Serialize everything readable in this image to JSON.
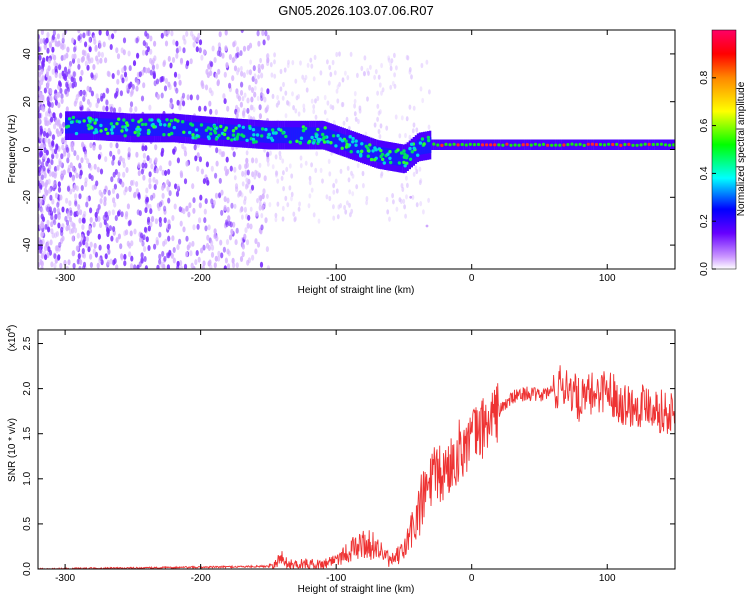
{
  "title": "GN05.2026.103.07.06.R07",
  "chart_data": [
    {
      "type": "heatmap",
      "xlabel": "Height of straight line (km)",
      "ylabel": "Frequency (Hz)",
      "xlim": [
        -320,
        150
      ],
      "ylim": [
        -50,
        50
      ],
      "xticks": [
        -300,
        -200,
        -100,
        0,
        100
      ],
      "yticks": [
        -40,
        -20,
        0,
        20,
        40
      ],
      "colorbar": {
        "label": "Normalized spectral amplitude",
        "range": [
          0,
          1
        ],
        "ticks": [
          "0.0",
          "0.2",
          "0.4",
          "0.6",
          "0.8"
        ],
        "colors": [
          "#ffffff",
          "#cc99ff",
          "#6600ff",
          "#0000ff",
          "#00ffff",
          "#00ff00",
          "#ffff00",
          "#ff8800",
          "#ff0000",
          "#ff0066"
        ]
      },
      "band": {
        "x": [
          -300,
          -280,
          -250,
          -220,
          -200,
          -150,
          -110,
          -90,
          -70,
          -50,
          -40,
          -30,
          0,
          100,
          150
        ],
        "center_hz": [
          10,
          10,
          9,
          9,
          8,
          6,
          6,
          2,
          -2,
          -4,
          1,
          2,
          2,
          2,
          2
        ]
      }
    },
    {
      "type": "line",
      "xlabel": "Height of straight line (km)",
      "ylabel": "SNR (10 * v/v)",
      "scale_label": "(x10",
      "scale_exp": "4",
      "xlim": [
        -320,
        150
      ],
      "ylim": [
        0,
        2.65
      ],
      "xticks": [
        -300,
        -200,
        -100,
        0,
        100
      ],
      "yticks": [
        "0.0",
        "0.5",
        "1.0",
        "1.5",
        "2.0",
        "2.5"
      ],
      "series": [
        {
          "color": "#ee3333",
          "x": [
            -320,
            -250,
            -200,
            -150,
            -140,
            -135,
            -125,
            -110,
            -100,
            -90,
            -80,
            -70,
            -60,
            -50,
            -40,
            -30,
            -20,
            -10,
            0,
            10,
            20,
            30,
            40,
            50,
            60,
            70,
            80,
            90,
            100,
            110,
            120,
            130,
            140,
            150
          ],
          "y": [
            0.0,
            0.01,
            0.02,
            0.03,
            0.12,
            0.05,
            0.06,
            0.05,
            0.12,
            0.2,
            0.28,
            0.25,
            0.08,
            0.2,
            0.6,
            1.0,
            1.05,
            1.3,
            1.45,
            1.6,
            1.75,
            1.9,
            1.95,
            1.92,
            1.98,
            2.05,
            1.85,
            1.95,
            2.0,
            1.85,
            1.8,
            1.85,
            1.75,
            1.7
          ]
        }
      ]
    }
  ]
}
